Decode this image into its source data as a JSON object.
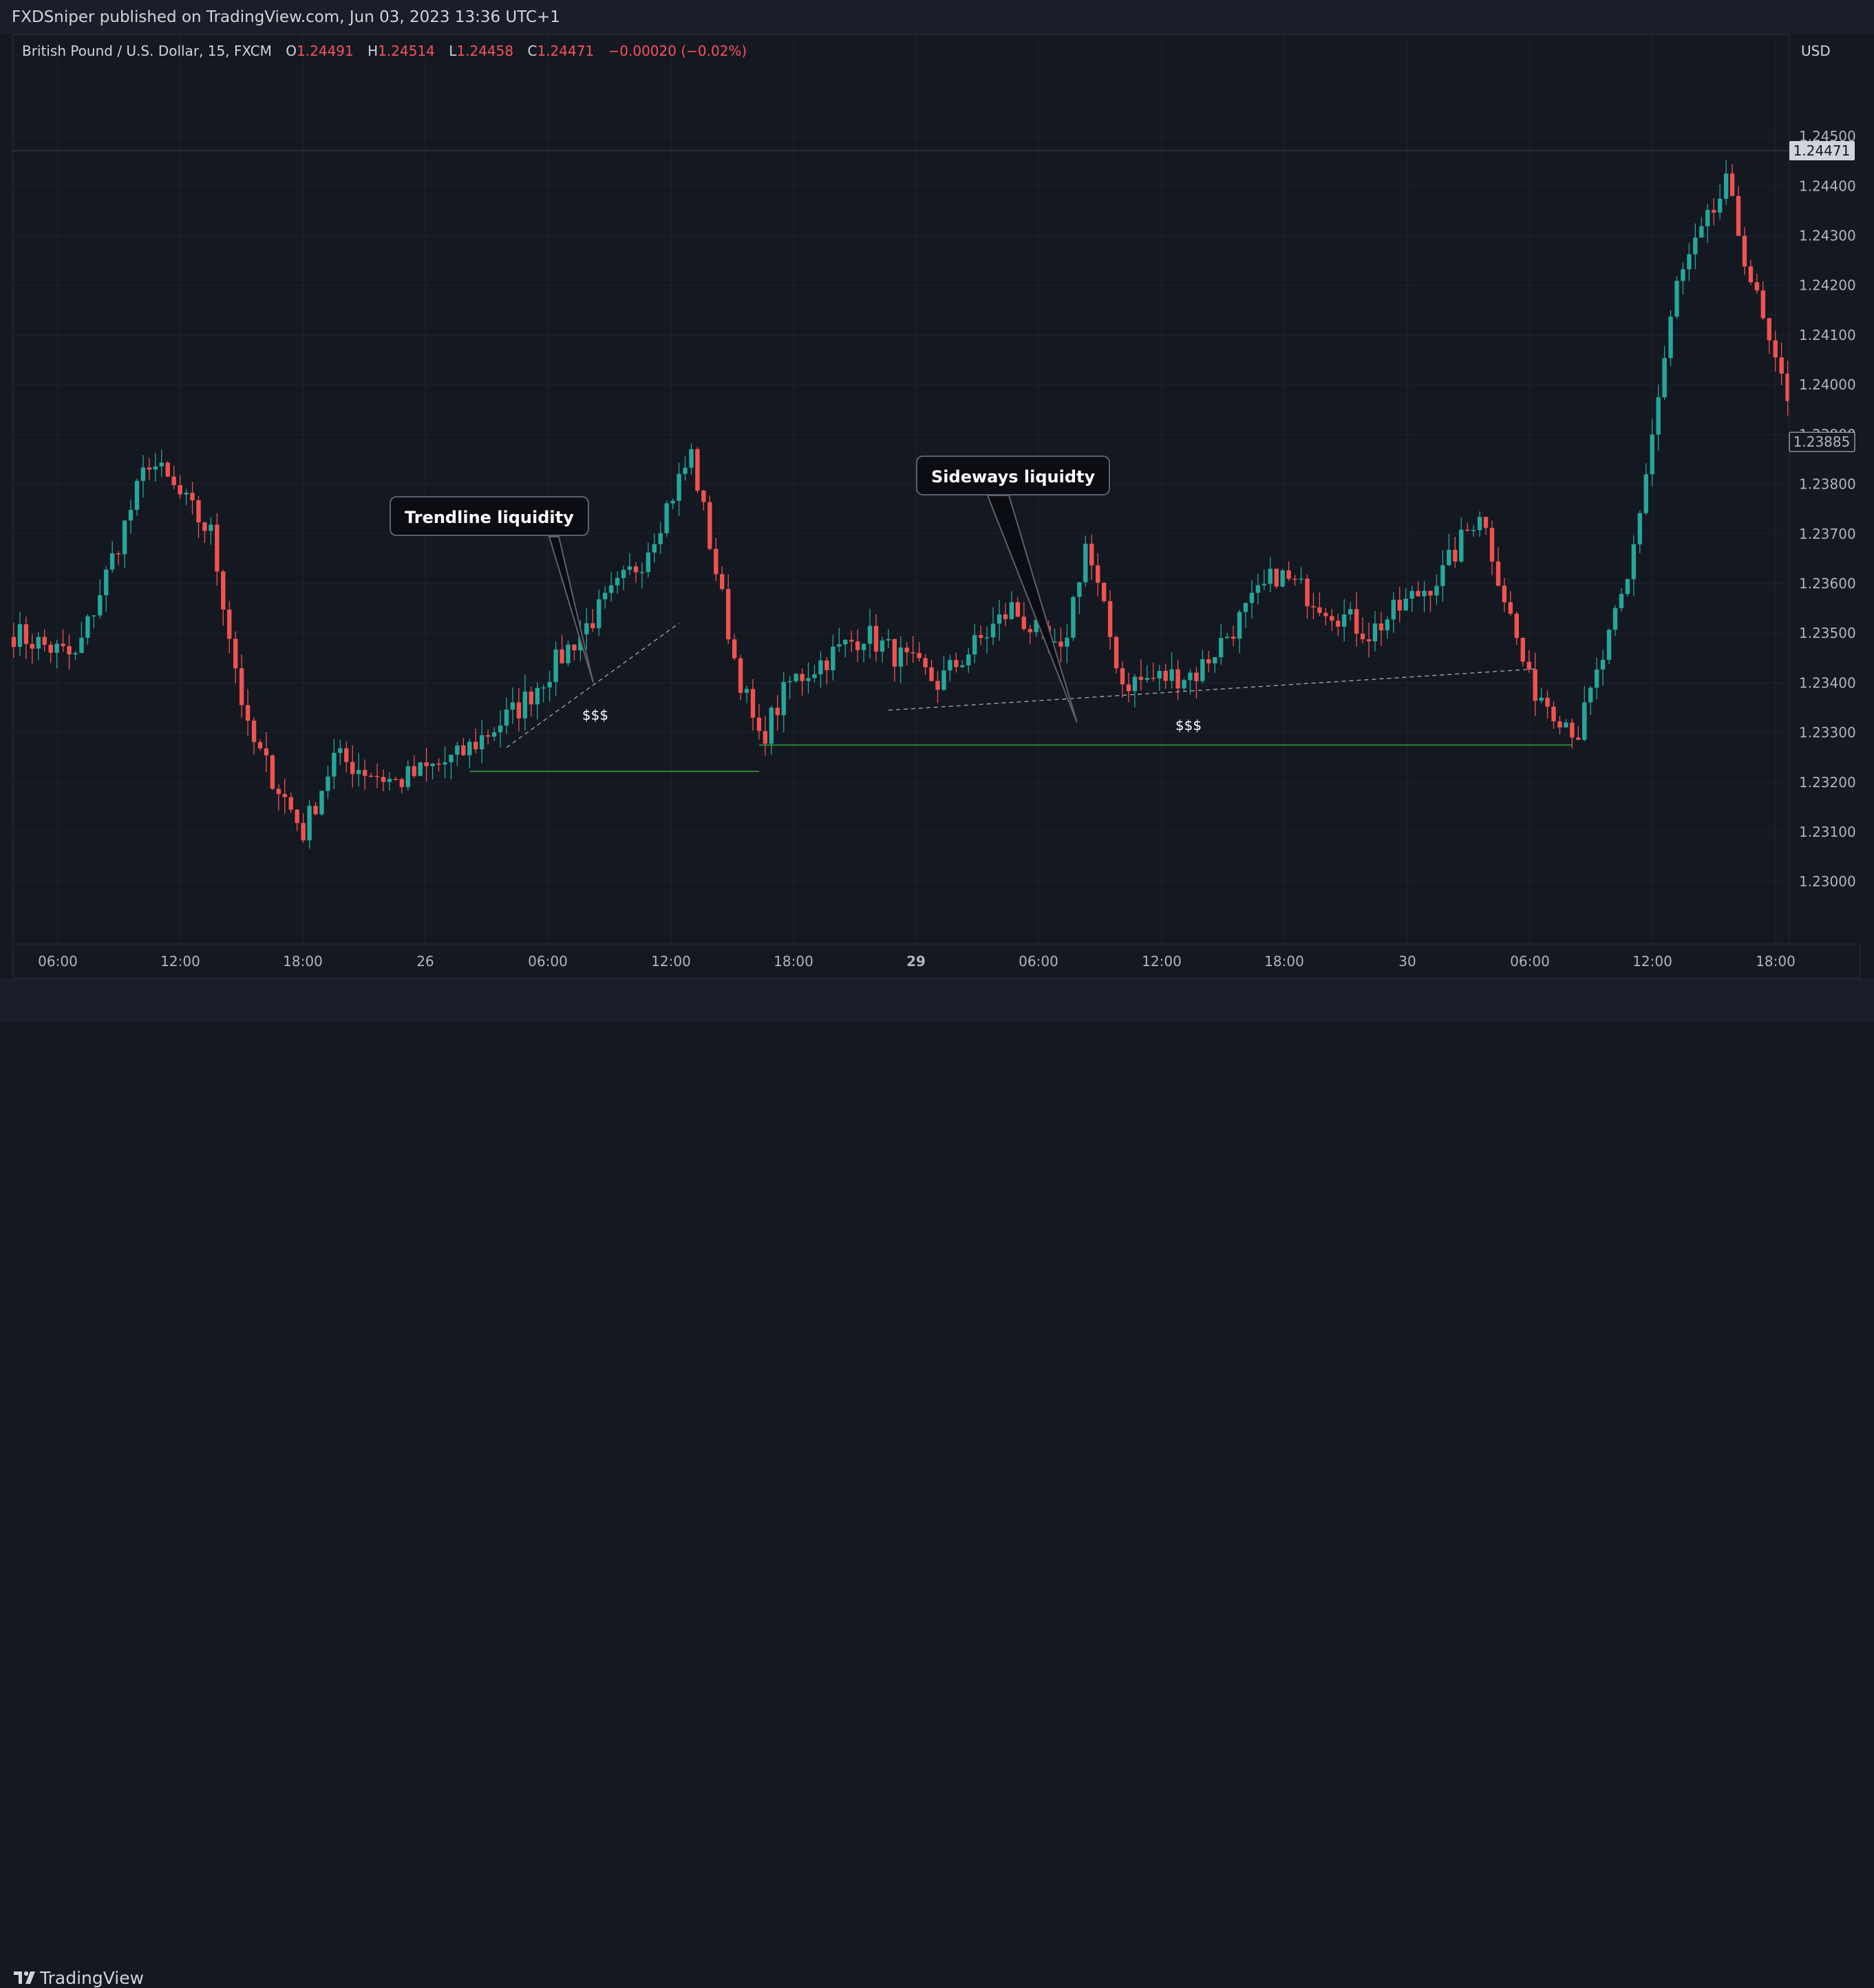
{
  "header": {
    "published": "FXDSniper published on TradingView.com, Jun 03, 2023 13:36 UTC+1"
  },
  "legend": {
    "symbol": "British Pound / U.S. Dollar, 15, FXCM",
    "open_label": "O",
    "open": "1.24491",
    "high_label": "H",
    "high": "1.24514",
    "low_label": "L",
    "low": "1.24458",
    "close_label": "C",
    "close": "1.24471",
    "change": "−0.00020 (−0.02%)"
  },
  "axis": {
    "currency": "USD",
    "price_ticks": [
      "1.24500",
      "1.24400",
      "1.24300",
      "1.24200",
      "1.24100",
      "1.24000",
      "1.23900",
      "1.23800",
      "1.23700",
      "1.23600",
      "1.23500",
      "1.23400",
      "1.23300",
      "1.23200",
      "1.23100",
      "1.23000"
    ],
    "time_ticks": [
      {
        "label": "06:00",
        "bold": false
      },
      {
        "label": "12:00",
        "bold": false
      },
      {
        "label": "18:00",
        "bold": false
      },
      {
        "label": "26",
        "bold": false
      },
      {
        "label": "06:00",
        "bold": false
      },
      {
        "label": "12:00",
        "bold": false
      },
      {
        "label": "18:00",
        "bold": false
      },
      {
        "label": "29",
        "bold": true
      },
      {
        "label": "06:00",
        "bold": false
      },
      {
        "label": "12:00",
        "bold": false
      },
      {
        "label": "18:00",
        "bold": false
      },
      {
        "label": "30",
        "bold": false
      },
      {
        "label": "06:00",
        "bold": false
      },
      {
        "label": "12:00",
        "bold": false
      },
      {
        "label": "18:00",
        "bold": false
      }
    ],
    "last_price_tag": "1.24471",
    "marker_price_tag": "1.23885"
  },
  "annotations": {
    "callout_1": "Trendline liquidity",
    "callout_2": "Sideways liquidty",
    "dollar_1": "$$$",
    "dollar_2": "$$$"
  },
  "footer": {
    "brand": "TradingView"
  },
  "colors": {
    "background": "#141821",
    "bullish": "#26a69a",
    "bearish": "#ef5350",
    "support_line": "#2e9b3c",
    "grid": "#1f2330"
  },
  "chart_data": {
    "type": "candlestick",
    "symbol": "GBPUSD",
    "timeframe": "15",
    "ylim": [
      1.2292,
      1.2455
    ],
    "waypoints": [
      {
        "bar": 0,
        "price": 1.235
      },
      {
        "bar": 10,
        "price": 1.2345
      },
      {
        "bar": 22,
        "price": 1.2385
      },
      {
        "bar": 32,
        "price": 1.237
      },
      {
        "bar": 38,
        "price": 1.233
      },
      {
        "bar": 47,
        "price": 1.231
      },
      {
        "bar": 52,
        "price": 1.2325
      },
      {
        "bar": 62,
        "price": 1.232
      },
      {
        "bar": 72,
        "price": 1.2325
      },
      {
        "bar": 82,
        "price": 1.2335
      },
      {
        "bar": 92,
        "price": 1.235
      },
      {
        "bar": 102,
        "price": 1.2365
      },
      {
        "bar": 110,
        "price": 1.2386
      },
      {
        "bar": 117,
        "price": 1.2345
      },
      {
        "bar": 121,
        "price": 1.2328
      },
      {
        "bar": 126,
        "price": 1.234
      },
      {
        "bar": 138,
        "price": 1.235
      },
      {
        "bar": 150,
        "price": 1.234
      },
      {
        "bar": 162,
        "price": 1.2355
      },
      {
        "bar": 170,
        "price": 1.2345
      },
      {
        "bar": 174,
        "price": 1.2368
      },
      {
        "bar": 180,
        "price": 1.234
      },
      {
        "bar": 192,
        "price": 1.2342
      },
      {
        "bar": 205,
        "price": 1.2362
      },
      {
        "bar": 220,
        "price": 1.235
      },
      {
        "bar": 232,
        "price": 1.2362
      },
      {
        "bar": 238,
        "price": 1.2375
      },
      {
        "bar": 246,
        "price": 1.234
      },
      {
        "bar": 254,
        "price": 1.233
      },
      {
        "bar": 262,
        "price": 1.236
      },
      {
        "bar": 270,
        "price": 1.242
      },
      {
        "bar": 278,
        "price": 1.244
      },
      {
        "bar": 286,
        "price": 1.2403
      },
      {
        "bar": 292,
        "price": 1.2389
      }
    ],
    "reference_lines": [
      {
        "kind": "support",
        "from_bar": 74,
        "to_bar": 121,
        "price": 1.23222
      },
      {
        "kind": "support",
        "from_bar": 121,
        "to_bar": 253,
        "price": 1.23275
      },
      {
        "kind": "trendline",
        "from_bar": 80,
        "to_bar": 108,
        "from_price": 1.2327,
        "to_price": 1.2352
      },
      {
        "kind": "trendline",
        "from_bar": 142,
        "to_bar": 247,
        "from_price": 1.23345,
        "to_price": 1.23428
      }
    ]
  }
}
